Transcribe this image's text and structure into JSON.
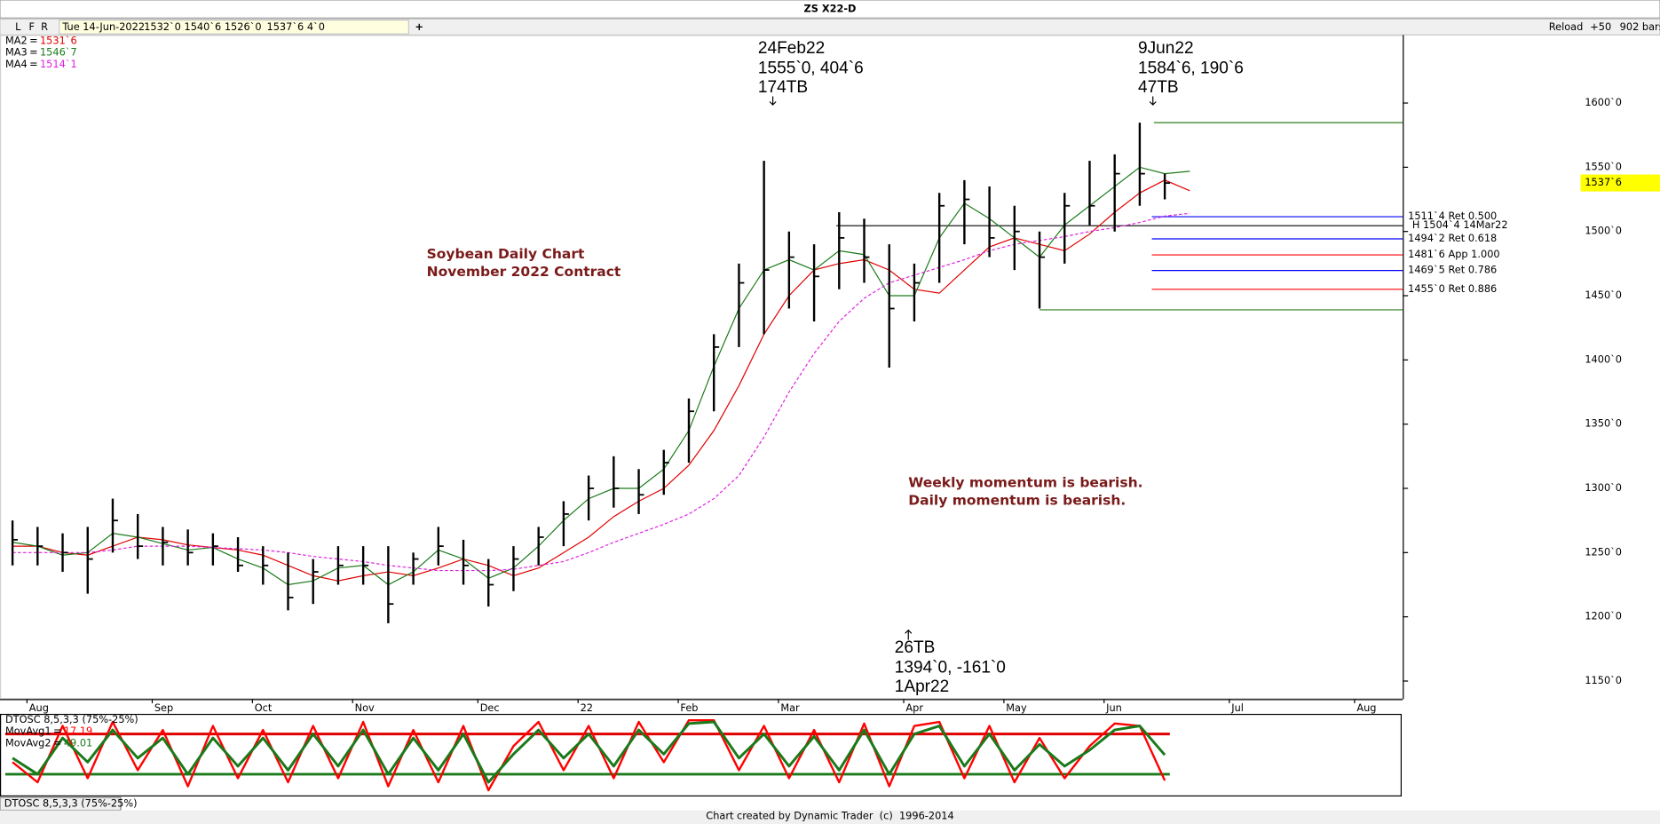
{
  "window": {
    "title": "ZS X22-D",
    "toolbar": {
      "buttons": [
        "L",
        "F",
        "R"
      ],
      "date": "Tue 14-Jun-2022",
      "open": "1532`0",
      "high": "1540`6",
      "low": "1526`0",
      "close": "1537`6",
      "change": "4`0",
      "add": "+",
      "reload": "Reload",
      "bars_step": "+50",
      "bars": "902 bars"
    },
    "tab": "DTOSC 8,5,3,3 (75%-25%)",
    "footer": "Chart created by Dynamic Trader  (c)  1996-2014"
  },
  "chart_data": [
    {
      "type": "ohlc",
      "categories": [
        null,
        "Aug",
        null,
        null,
        null,
        null,
        "Sep",
        null,
        null,
        null,
        "Oct",
        null,
        null,
        null,
        "Nov",
        null,
        null,
        null,
        null,
        "Dec",
        null,
        null,
        null,
        "22",
        null,
        null,
        null,
        "Feb",
        null,
        null,
        null,
        "Mar",
        null,
        null,
        null,
        null,
        "Apr",
        null,
        null,
        null,
        "May",
        null,
        null,
        null,
        "Jun",
        null,
        null,
        null,
        null,
        "Jul",
        null,
        null,
        null,
        null,
        "Aug",
        null
      ],
      "high": [
        1275,
        1270,
        1265,
        1270,
        1292,
        1280,
        1270,
        1268,
        1265,
        1262,
        1255,
        1250,
        1245,
        1255,
        1255,
        1255,
        1250,
        1270,
        1260,
        1245,
        1255,
        1270,
        1290,
        1310,
        1325,
        1315,
        1330,
        1370,
        1420,
        1475,
        1555,
        1500,
        1490,
        1515,
        1510,
        1490,
        1475,
        1530,
        1540,
        1535,
        1520,
        1500,
        1530,
        1555,
        1560,
        1584.75,
        1545,
        null,
        null,
        null,
        null,
        null,
        null,
        null,
        null,
        null
      ],
      "low": [
        1240,
        1240,
        1235,
        1218,
        1250,
        1245,
        1240,
        1240,
        1240,
        1235,
        1225,
        1205,
        1210,
        1225,
        1225,
        1195,
        1225,
        1240,
        1225,
        1208,
        1220,
        1240,
        1255,
        1275,
        1285,
        1280,
        1295,
        1320,
        1360,
        1410,
        1420,
        1440,
        1430,
        1455,
        1460,
        1394,
        1430,
        1460,
        1490,
        1480,
        1470,
        1440,
        1475,
        1505,
        1500,
        1520,
        1525,
        null,
        null,
        null,
        null,
        null,
        null,
        null,
        null,
        null
      ],
      "close": [
        1260,
        1255,
        1250,
        1245,
        1275,
        1255,
        1258,
        1250,
        1255,
        1240,
        1240,
        1215,
        1235,
        1240,
        1240,
        1210,
        1245,
        1255,
        1240,
        1225,
        1245,
        1262,
        1280,
        1300,
        1300,
        1295,
        1320,
        1360,
        1410,
        1460,
        1470,
        1480,
        1465,
        1495,
        1480,
        1440,
        1460,
        1520,
        1525,
        1495,
        1500,
        1480,
        1520,
        1520,
        1545,
        1545,
        1537.75,
        null,
        null,
        null,
        null,
        null,
        null,
        null,
        null,
        null
      ],
      "color": "#000000",
      "ylim": [
        1136,
        1653
      ],
      "yticks": [
        {
          "value": 1150,
          "label": "1150`0"
        },
        {
          "value": 1200,
          "label": "1200`0"
        },
        {
          "value": 1250,
          "label": "1250`0"
        },
        {
          "value": 1300,
          "label": "1300`0"
        },
        {
          "value": 1350,
          "label": "1350`0"
        },
        {
          "value": 1400,
          "label": "1400`0"
        },
        {
          "value": 1450,
          "label": "1450`0"
        },
        {
          "value": 1500,
          "label": "1500`0"
        },
        {
          "value": 1550,
          "label": "1550`0"
        },
        {
          "value": 1600,
          "label": "1600`0"
        }
      ],
      "last_price": {
        "value": 1537.75,
        "label": "1537`6"
      },
      "legend_separator": "=",
      "series": [
        {
          "name": "MA2",
          "color": "#e00000",
          "current": {
            "value": 1531.75,
            "label": "1531`6"
          },
          "values": [
            1255,
            1255,
            1250,
            1248,
            1255,
            1262,
            1260,
            1256,
            1254,
            1252,
            1248,
            1240,
            1232,
            1228,
            1232,
            1235,
            1232,
            1238,
            1245,
            1240,
            1232,
            1238,
            1250,
            1262,
            1278,
            1290,
            1300,
            1318,
            1345,
            1380,
            1420,
            1450,
            1470,
            1475,
            1478,
            1470,
            1455,
            1452,
            1470,
            1488,
            1495,
            1490,
            1485,
            1498,
            1515,
            1530,
            1540,
            1531.75,
            null,
            null,
            null,
            null,
            null,
            null,
            null,
            null
          ]
        },
        {
          "name": "MA3",
          "color": "#1a7a1a",
          "current": {
            "value": 1546.875,
            "label": "1546`7"
          },
          "values": [
            1258,
            1255,
            1248,
            1250,
            1265,
            1262,
            1257,
            1252,
            1254,
            1245,
            1238,
            1225,
            1228,
            1238,
            1240,
            1225,
            1235,
            1252,
            1245,
            1230,
            1238,
            1255,
            1275,
            1292,
            1300,
            1300,
            1315,
            1345,
            1395,
            1440,
            1470,
            1478,
            1470,
            1485,
            1482,
            1450,
            1450,
            1495,
            1522,
            1510,
            1495,
            1480,
            1505,
            1520,
            1535,
            1550,
            1545,
            1546.875,
            null,
            null,
            null,
            null,
            null,
            null,
            null,
            null
          ]
        },
        {
          "name": "MA4",
          "color": "#e020e0",
          "dashed": true,
          "current": {
            "value": 1514.125,
            "label": "1514`1"
          },
          "values": [
            1250,
            1250,
            1250,
            1250,
            1252,
            1255,
            1255,
            1255,
            1254,
            1253,
            1252,
            1250,
            1247,
            1245,
            1243,
            1240,
            1238,
            1236,
            1236,
            1236,
            1237,
            1240,
            1243,
            1250,
            1258,
            1265,
            1272,
            1280,
            1292,
            1310,
            1340,
            1375,
            1405,
            1430,
            1448,
            1460,
            1466,
            1472,
            1478,
            1485,
            1490,
            1493,
            1496,
            1500,
            1503,
            1507,
            1512,
            1514.125,
            null,
            null,
            null,
            null,
            null,
            null,
            null,
            null
          ]
        }
      ],
      "price_lines": [
        {
          "value": 1584.75,
          "color": "#2e7d1e"
        },
        {
          "value": 1439,
          "color": "#2e7d1e"
        }
      ],
      "levels": [
        {
          "value": 1511.5,
          "label": "1511`4 Ret 0.500",
          "color": "#0000ff"
        },
        {
          "value": 1504.5,
          "label": "H 1504`4 14Mar22",
          "color": "#000000"
        },
        {
          "value": 1494.25,
          "label": "1494`2 Ret 0.618",
          "color": "#0000ff"
        },
        {
          "value": 1481.75,
          "label": "1481`6 App 1.000",
          "color": "#ff0000"
        },
        {
          "value": 1469.625,
          "label": "1469`5 Ret 0.786",
          "color": "#0000ff"
        },
        {
          "value": 1455,
          "label": "1455`0 Ret 0.886",
          "color": "#ff0000"
        }
      ],
      "annotations": [
        {
          "text": [
            "24Feb22",
            "1555`0, 404`6",
            "174TB"
          ],
          "value": 1555
        },
        {
          "text": [
            "9Jun22",
            "1584`6, 190`6",
            "47TB"
          ],
          "value": 1584.75
        },
        {
          "text": [
            "26TB",
            "1394`0, -161`0",
            "1Apr22"
          ],
          "value": 1394
        }
      ],
      "notes": [
        [
          "Soybean Daily Chart",
          "November 2022 Contract"
        ],
        [
          "Weekly momentum is bearish.",
          "Daily momentum is bearish."
        ]
      ]
    },
    {
      "type": "line",
      "title": "DTOSC 8,5,3,3 (75%-25%)",
      "ylim": [
        0,
        100
      ],
      "legend_separator": "=",
      "levels": [
        {
          "value": 75,
          "color": "#e00000"
        },
        {
          "value": 25,
          "color": "#1a7a1a"
        }
      ],
      "series": [
        {
          "name": "MovAvg1",
          "color": "#ff0000",
          "current": 17.19,
          "values": [
            40,
            15,
            85,
            20,
            90,
            30,
            80,
            10,
            85,
            20,
            80,
            15,
            85,
            20,
            90,
            10,
            80,
            15,
            85,
            5,
            60,
            90,
            30,
            85,
            20,
            90,
            40,
            92,
            92,
            30,
            85,
            20,
            80,
            15,
            88,
            10,
            85,
            90,
            20,
            85,
            15,
            70,
            20,
            60,
            88,
            85,
            17.19,
            null,
            null,
            null,
            null,
            null,
            null,
            null,
            null,
            null
          ]
        },
        {
          "name": "MovAvg2",
          "color": "#1a7a1a",
          "current": 49.01,
          "values": [
            45,
            25,
            70,
            40,
            80,
            45,
            70,
            25,
            70,
            35,
            70,
            30,
            75,
            35,
            80,
            25,
            70,
            30,
            75,
            15,
            50,
            80,
            45,
            75,
            35,
            80,
            50,
            88,
            90,
            45,
            75,
            35,
            72,
            30,
            80,
            25,
            75,
            85,
            35,
            75,
            30,
            62,
            35,
            55,
            80,
            85,
            49.01,
            null,
            null,
            null,
            null,
            null,
            null,
            null,
            null,
            null
          ]
        }
      ]
    }
  ]
}
